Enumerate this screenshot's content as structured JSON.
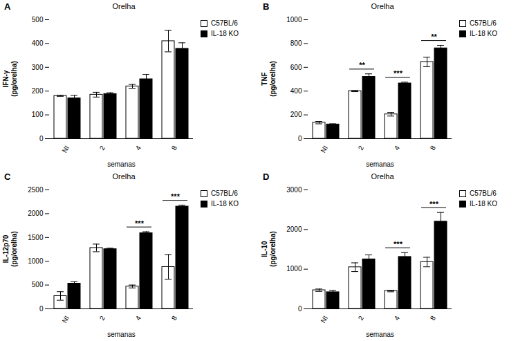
{
  "chart_data": [
    {
      "type": "bar",
      "panel": "A",
      "title": "Orelha",
      "x_label": "semanas",
      "y_label": "IFN-γ\n(pg/orelha)",
      "categories": [
        "NI",
        "2",
        "4",
        "8"
      ],
      "series": [
        {
          "name": "C57BL/6",
          "color": "#ffffff",
          "values": [
            180,
            185,
            220,
            410
          ],
          "errors": [
            2,
            10,
            8,
            45
          ]
        },
        {
          "name": "IL-18 KO",
          "color": "#000000",
          "values": [
            170,
            188,
            250,
            378
          ],
          "errors": [
            12,
            5,
            20,
            25
          ]
        }
      ],
      "ylim": [
        0,
        500
      ],
      "yticks": [
        0,
        100,
        200,
        300,
        400,
        500
      ],
      "legend": "right",
      "significance": []
    },
    {
      "type": "bar",
      "panel": "B",
      "title": "Orelha",
      "x_label": "semanas",
      "y_label": "TNF\n(pg/orelha)",
      "categories": [
        "NI",
        "2",
        "4",
        "8"
      ],
      "series": [
        {
          "name": "C57BL/6",
          "color": "#ffffff",
          "values": [
            135,
            400,
            205,
            645
          ],
          "errors": [
            10,
            5,
            15,
            40
          ]
        },
        {
          "name": "IL-18 KO",
          "color": "#000000",
          "values": [
            120,
            520,
            465,
            760
          ],
          "errors": [
            5,
            25,
            10,
            25
          ]
        }
      ],
      "ylim": [
        0,
        1000
      ],
      "yticks": [
        0,
        200,
        400,
        600,
        800,
        1000
      ],
      "legend": "right",
      "significance": [
        {
          "category": "2",
          "label": "**"
        },
        {
          "category": "4",
          "label": "***"
        },
        {
          "category": "8",
          "label": "**"
        }
      ]
    },
    {
      "type": "bar",
      "panel": "C",
      "title": "Orelha",
      "x_label": "semanas",
      "y_label": "IL-12p70\n(pg/orelha)",
      "categories": [
        "NI",
        "2",
        "4",
        "8"
      ],
      "series": [
        {
          "name": "C57BL/6",
          "color": "#ffffff",
          "values": [
            270,
            1280,
            470,
            880
          ],
          "errors": [
            90,
            80,
            30,
            260
          ]
        },
        {
          "name": "IL-18 KO",
          "color": "#000000",
          "values": [
            530,
            1255,
            1590,
            2150
          ],
          "errors": [
            40,
            20,
            30,
            30
          ]
        }
      ],
      "ylim": [
        0,
        2500
      ],
      "yticks": [
        0,
        500,
        1000,
        1500,
        2000,
        2500
      ],
      "legend": "right",
      "significance": [
        {
          "category": "4",
          "label": "***"
        },
        {
          "category": "8",
          "label": "***"
        }
      ]
    },
    {
      "type": "bar",
      "panel": "D",
      "title": "Orelha",
      "x_label": "semanas",
      "y_label": "IL-10\n(pg/orelha)",
      "categories": [
        "NI",
        "2",
        "4",
        "8"
      ],
      "series": [
        {
          "name": "C57BL/6",
          "color": "#ffffff",
          "values": [
            470,
            1050,
            450,
            1180
          ],
          "errors": [
            30,
            110,
            20,
            120
          ]
        },
        {
          "name": "IL-18 KO",
          "color": "#000000",
          "values": [
            420,
            1250,
            1310,
            2200
          ],
          "errors": [
            50,
            110,
            110,
            230
          ]
        }
      ],
      "ylim": [
        0,
        3000
      ],
      "yticks": [
        0,
        1000,
        2000,
        3000
      ],
      "legend": "right",
      "significance": [
        {
          "category": "4",
          "label": "***"
        },
        {
          "category": "8",
          "label": "***"
        }
      ]
    }
  ]
}
